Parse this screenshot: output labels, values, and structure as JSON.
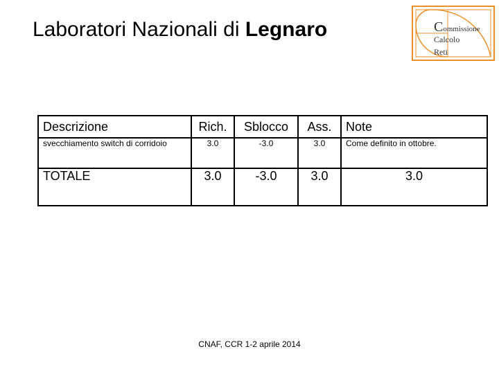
{
  "title": {
    "normal": "Laboratori Nazionali di ",
    "bold": "Legnaro"
  },
  "logo": {
    "line1": "ommissione",
    "line2": "alcolo",
    "line3": "eti",
    "initials": [
      "C",
      "C",
      "R"
    ]
  },
  "table": {
    "headers": [
      "Descrizione",
      "Rich.",
      "Sblocco",
      "Ass.",
      "Note"
    ],
    "rows": [
      [
        "svecchiamento switch di corridoio",
        "3.0",
        "-3.0",
        "3.0",
        "Come definito in ottobre."
      ],
      [
        "TOTALE",
        "3.0",
        "-3.0",
        "3.0",
        "3.0"
      ]
    ]
  },
  "footer": "CNAF, CCR 1-2 aprile 2014",
  "colors": {
    "logo_border": "#e8902a"
  }
}
